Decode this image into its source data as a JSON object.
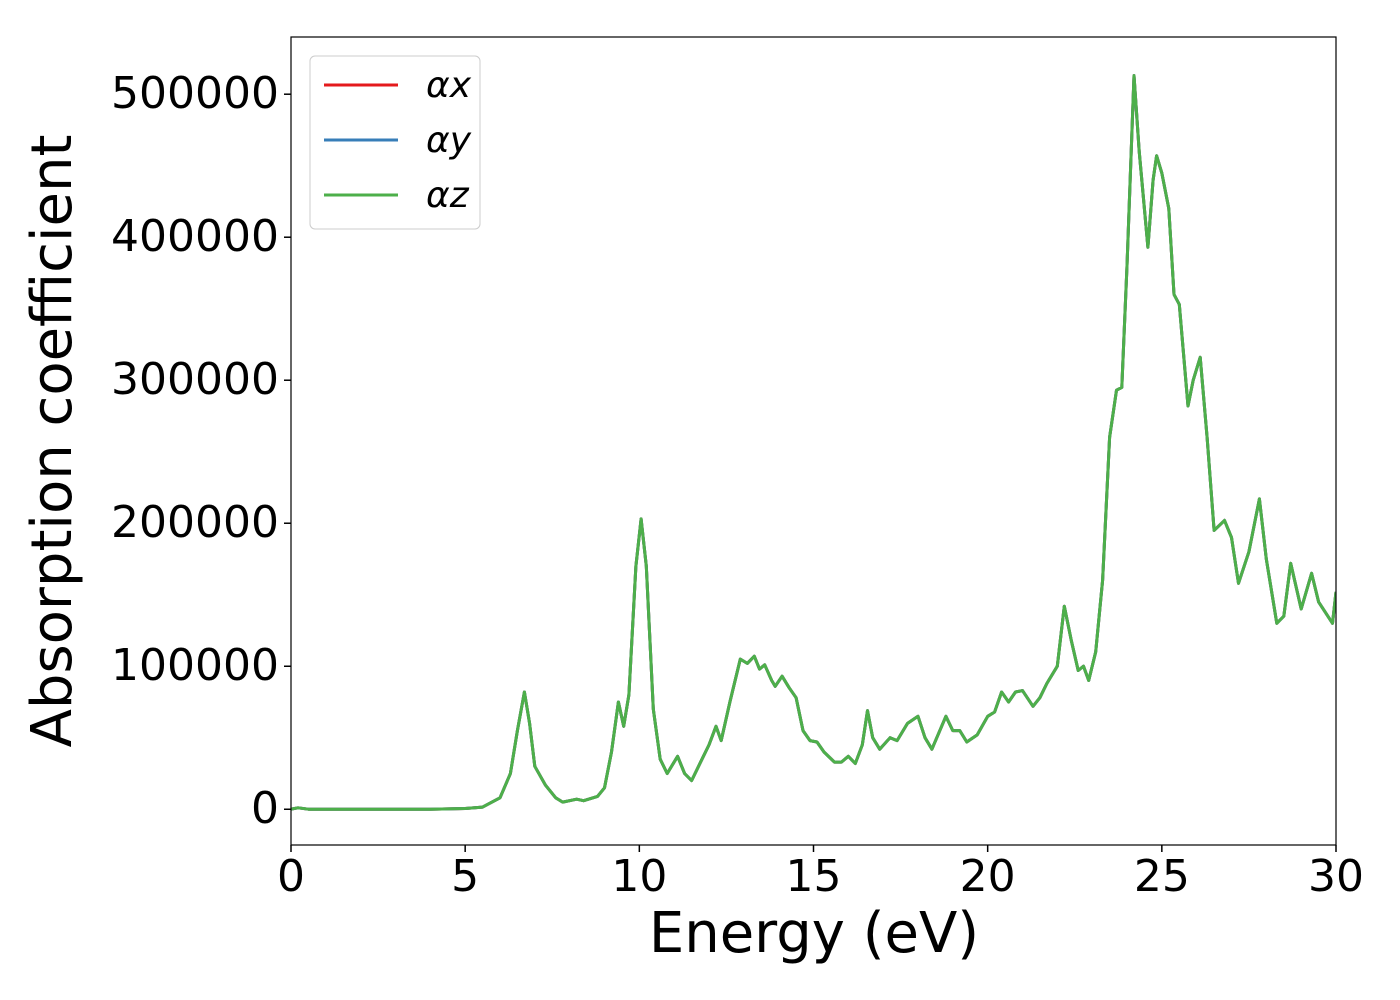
{
  "chart_data": {
    "type": "line",
    "xlabel": "Energy (eV)",
    "ylabel": "Absorption coefficient",
    "x": [
      0,
      0.2,
      0.5,
      1,
      2,
      3,
      4,
      5,
      5.5,
      6,
      6.3,
      6.5,
      6.7,
      6.85,
      7,
      7.3,
      7.6,
      7.8,
      8.2,
      8.4,
      8.8,
      9,
      9.2,
      9.4,
      9.55,
      9.7,
      9.9,
      10.05,
      10.2,
      10.4,
      10.6,
      10.8,
      11.1,
      11.3,
      11.5,
      11.8,
      12,
      12.2,
      12.35,
      12.6,
      12.9,
      13.1,
      13.3,
      13.45,
      13.6,
      13.8,
      13.9,
      14.1,
      14.3,
      14.5,
      14.7,
      14.9,
      15.1,
      15.3,
      15.6,
      15.8,
      16,
      16.2,
      16.4,
      16.55,
      16.7,
      16.9,
      17.2,
      17.4,
      17.7,
      18,
      18.2,
      18.4,
      18.8,
      19,
      19.2,
      19.4,
      19.7,
      20,
      20.2,
      20.4,
      20.6,
      20.8,
      21,
      21.3,
      21.5,
      21.7,
      22,
      22.2,
      22.4,
      22.6,
      22.75,
      22.9,
      23.1,
      23.3,
      23.5,
      23.7,
      23.85,
      24,
      24.2,
      24.35,
      24.6,
      24.75,
      24.85,
      25,
      25.2,
      25.35,
      25.5,
      25.75,
      25.9,
      26.1,
      26.3,
      26.5,
      26.8,
      27,
      27.2,
      27.5,
      27.8,
      28,
      28.3,
      28.5,
      28.7,
      29,
      29.3,
      29.5,
      29.9,
      30
    ],
    "series": [
      {
        "name": "αx",
        "color": "#e41a1c",
        "values": [
          0,
          1000,
          0,
          0,
          0,
          0,
          0,
          500,
          1500,
          8000,
          25000,
          55000,
          82000,
          60000,
          30000,
          17000,
          8000,
          5000,
          7000,
          6000,
          9000,
          15000,
          40000,
          75000,
          58000,
          80000,
          170000,
          203000,
          170000,
          70000,
          35000,
          25000,
          37000,
          25000,
          20000,
          35000,
          45000,
          58000,
          48000,
          75000,
          105000,
          102000,
          107000,
          98000,
          101000,
          90000,
          86000,
          93000,
          85000,
          78000,
          55000,
          48000,
          47000,
          40000,
          33000,
          33000,
          37000,
          32000,
          45000,
          69000,
          50000,
          42000,
          50000,
          48000,
          60000,
          65000,
          50000,
          42000,
          65000,
          55000,
          55000,
          47000,
          52000,
          65000,
          68000,
          82000,
          75000,
          82000,
          83000,
          72000,
          78000,
          88000,
          100000,
          142000,
          118000,
          97000,
          100000,
          90000,
          110000,
          160000,
          260000,
          293000,
          295000,
          380000,
          513000,
          460000,
          393000,
          440000,
          457000,
          445000,
          420000,
          360000,
          353000,
          282000,
          300000,
          316000,
          260000,
          195000,
          202000,
          190000,
          158000,
          180000,
          217000,
          175000,
          130000,
          135000,
          172000,
          140000,
          165000,
          145000,
          130000,
          152000
        ]
      },
      {
        "name": "αy",
        "color": "#377eb8",
        "values": [
          0,
          1000,
          0,
          0,
          0,
          0,
          0,
          500,
          1500,
          8000,
          25000,
          55000,
          82000,
          60000,
          30000,
          17000,
          8000,
          5000,
          7000,
          6000,
          9000,
          15000,
          40000,
          75000,
          58000,
          80000,
          170000,
          203000,
          170000,
          70000,
          35000,
          25000,
          37000,
          25000,
          20000,
          35000,
          45000,
          58000,
          48000,
          75000,
          105000,
          102000,
          107000,
          98000,
          101000,
          90000,
          86000,
          93000,
          85000,
          78000,
          55000,
          48000,
          47000,
          40000,
          33000,
          33000,
          37000,
          32000,
          45000,
          69000,
          50000,
          42000,
          50000,
          48000,
          60000,
          65000,
          50000,
          42000,
          65000,
          55000,
          55000,
          47000,
          52000,
          65000,
          68000,
          82000,
          75000,
          82000,
          83000,
          72000,
          78000,
          88000,
          100000,
          142000,
          118000,
          97000,
          100000,
          90000,
          110000,
          160000,
          260000,
          293000,
          295000,
          380000,
          513000,
          460000,
          393000,
          440000,
          457000,
          445000,
          420000,
          360000,
          353000,
          282000,
          300000,
          316000,
          260000,
          195000,
          202000,
          190000,
          158000,
          180000,
          217000,
          175000,
          130000,
          135000,
          172000,
          140000,
          165000,
          145000,
          130000,
          152000
        ]
      },
      {
        "name": "αz",
        "color": "#4daf4a",
        "values": [
          0,
          1000,
          0,
          0,
          0,
          0,
          0,
          500,
          1500,
          8000,
          25000,
          55000,
          82000,
          60000,
          30000,
          17000,
          8000,
          5000,
          7000,
          6000,
          9000,
          15000,
          40000,
          75000,
          58000,
          80000,
          170000,
          203000,
          170000,
          70000,
          35000,
          25000,
          37000,
          25000,
          20000,
          35000,
          45000,
          58000,
          48000,
          75000,
          105000,
          102000,
          107000,
          98000,
          101000,
          90000,
          86000,
          93000,
          85000,
          78000,
          55000,
          48000,
          47000,
          40000,
          33000,
          33000,
          37000,
          32000,
          45000,
          69000,
          50000,
          42000,
          50000,
          48000,
          60000,
          65000,
          50000,
          42000,
          65000,
          55000,
          55000,
          47000,
          52000,
          65000,
          68000,
          82000,
          75000,
          82000,
          83000,
          72000,
          78000,
          88000,
          100000,
          142000,
          118000,
          97000,
          100000,
          90000,
          110000,
          160000,
          260000,
          293000,
          295000,
          380000,
          513000,
          460000,
          393000,
          440000,
          457000,
          445000,
          420000,
          360000,
          353000,
          282000,
          300000,
          316000,
          260000,
          195000,
          202000,
          190000,
          158000,
          180000,
          217000,
          175000,
          130000,
          135000,
          172000,
          140000,
          165000,
          145000,
          130000,
          152000
        ]
      }
    ],
    "xlim": [
      0,
      30
    ],
    "xticks": [
      0,
      5,
      10,
      15,
      20,
      25,
      30
    ],
    "ylim": [
      -25000,
      540000
    ],
    "yticks": [
      0,
      100000,
      200000,
      300000,
      400000,
      500000
    ],
    "legend": "upper left",
    "grid": false
  }
}
